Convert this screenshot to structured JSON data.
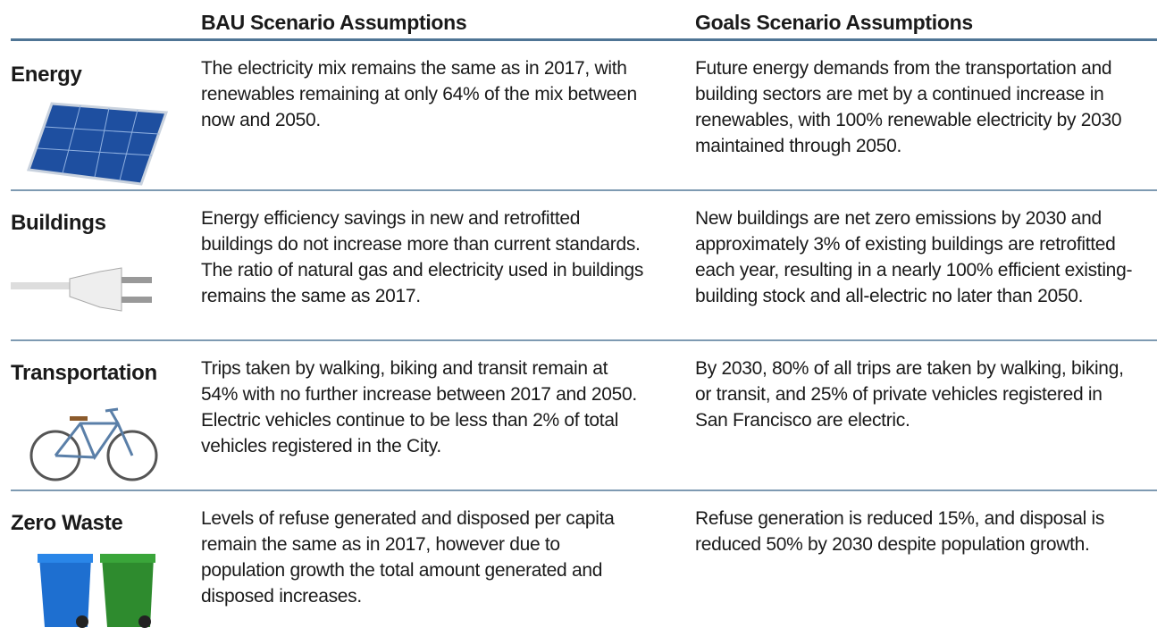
{
  "header": {
    "bau": "BAU Scenario Assumptions",
    "goals": "Goals Scenario Assumptions"
  },
  "rows": [
    {
      "label": "Energy",
      "bau": "The electricity mix remains the same as in 2017, with renewables remaining at only 64% of the mix between now and 2050.",
      "goals": "Future energy demands from the transportation and building sectors are met by a continued increase in renewables, with 100% renewable electricity by 2030 maintained through 2050."
    },
    {
      "label": "Buildings",
      "bau": "Energy efficiency savings in new and retrofitted buildings do not increase more than current standards. The ratio of natural gas and electricity used in buildings remains the same as 2017.",
      "goals": "New buildings are net zero emissions by 2030 and approximately 3% of existing buildings are retrofitted each year, resulting in a nearly 100% efficient existing-building stock and all-electric no later than 2050."
    },
    {
      "label": "Transportation",
      "bau": "Trips taken by walking, biking and transit remain at 54% with no further increase between 2017 and 2050. Electric vehicles  continue to be less than 2% of total vehicles registered in the City.",
      "goals": "By 2030, 80% of all trips are taken by walking, biking, or transit, and 25% of private vehicles registered in San Francisco are electric."
    },
    {
      "label": "Zero Waste",
      "bau": "Levels of refuse generated and disposed per capita remain the same as in 2017, however due to population growth the total amount generated and disposed increases.",
      "goals": "Refuse generation is reduced 15%, and disposal is reduced 50% by 2030 despite population growth."
    }
  ]
}
